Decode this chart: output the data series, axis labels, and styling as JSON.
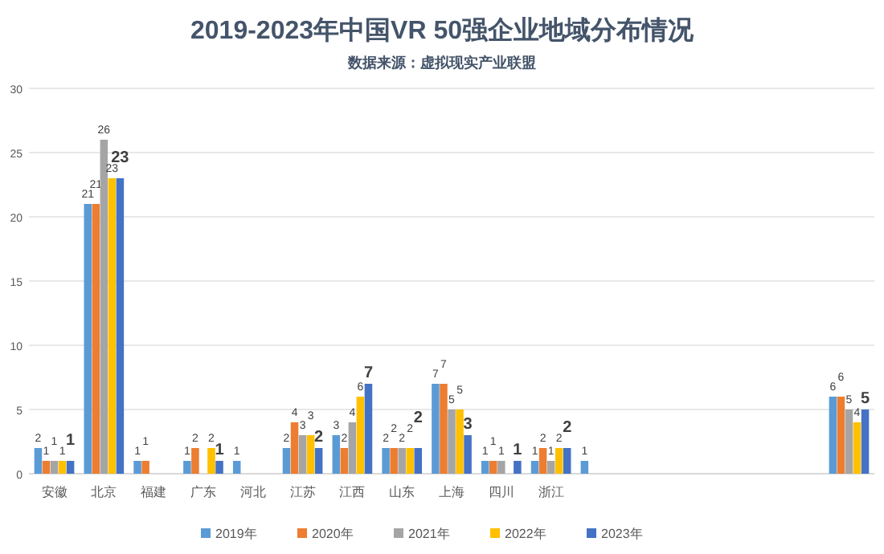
{
  "chart_data": {
    "type": "bar",
    "title": "2019-2023年中国VR 50强企业地域分布情况",
    "subtitle": "数据来源：虚拟现实产业联盟",
    "categories": [
      "安徽",
      "北京",
      "福建",
      "广东",
      "河北",
      "江苏",
      "江西",
      "山东",
      "上海",
      "四川",
      "浙江",
      null,
      null,
      null,
      null,
      null,
      null
    ],
    "series": [
      {
        "name": "2019年",
        "color": "#5b9bd5",
        "values": [
          2,
          21,
          1,
          1,
          1,
          2,
          3,
          2,
          7,
          1,
          1,
          1,
          null,
          null,
          null,
          null,
          6
        ]
      },
      {
        "name": "2020年",
        "color": "#ed7d31",
        "values": [
          1,
          21,
          1,
          2,
          null,
          4,
          2,
          2,
          7,
          1,
          2,
          null,
          null,
          null,
          null,
          null,
          6
        ]
      },
      {
        "name": "2021年",
        "color": "#a5a5a5",
        "values": [
          1,
          26,
          null,
          null,
          null,
          3,
          4,
          2,
          5,
          1,
          1,
          null,
          null,
          null,
          null,
          null,
          5
        ]
      },
      {
        "name": "2022年",
        "color": "#ffc000",
        "values": [
          1,
          23,
          null,
          2,
          null,
          3,
          6,
          2,
          5,
          null,
          2,
          null,
          null,
          null,
          null,
          null,
          4
        ]
      },
      {
        "name": "2023年",
        "color": "#4472c4",
        "values": [
          1,
          23,
          null,
          1,
          null,
          2,
          7,
          2,
          3,
          1,
          2,
          null,
          null,
          null,
          null,
          null,
          5
        ]
      }
    ],
    "ylim": [
      0,
      30
    ],
    "yticks": [
      0,
      5,
      10,
      15,
      20,
      25,
      30
    ],
    "grid": "y",
    "data_labels": true,
    "legend": "bottom"
  }
}
